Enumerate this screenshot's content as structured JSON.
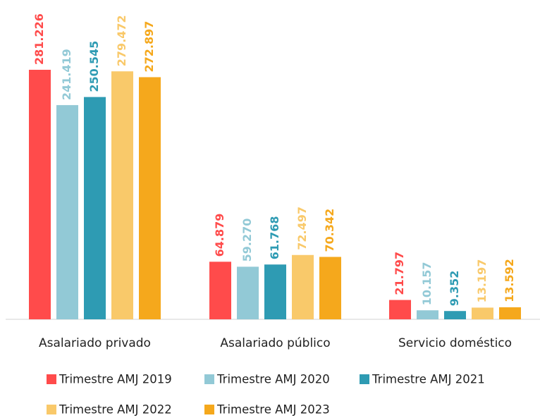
{
  "chart_data": {
    "type": "bar",
    "categories": [
      "Asalariado privado",
      "Asalariado público",
      "Servicio doméstico"
    ],
    "series": [
      {
        "name": "Trimestre AMJ 2019",
        "color": "#ff4b4b",
        "values": [
          281226,
          64879,
          21797
        ],
        "value_labels": [
          "281.226",
          "64.879",
          "21.797"
        ]
      },
      {
        "name": "Trimestre AMJ 2020",
        "color": "#92c9d6",
        "values": [
          241419,
          59270,
          10157
        ],
        "value_labels": [
          "241.419",
          "59.270",
          "10.157"
        ]
      },
      {
        "name": "Trimestre AMJ 2021",
        "color": "#2e9bb3",
        "values": [
          250545,
          61768,
          9352
        ],
        "value_labels": [
          "250.545",
          "61.768",
          "9.352"
        ]
      },
      {
        "name": "Trimestre AMJ 2022",
        "color": "#f9c96a",
        "values": [
          279472,
          72497,
          13197
        ],
        "value_labels": [
          "279.472",
          "72.497",
          "13.197"
        ]
      },
      {
        "name": "Trimestre AMJ 2023",
        "color": "#f5a81c",
        "values": [
          272897,
          70342,
          13592
        ],
        "value_labels": [
          "272.897",
          "70.342",
          "13.592"
        ]
      }
    ],
    "legend": "bottom"
  }
}
